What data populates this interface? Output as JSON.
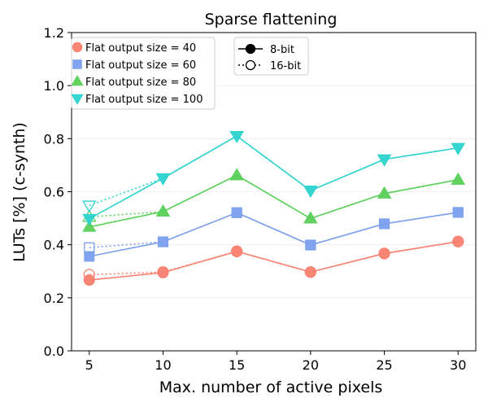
{
  "chart_data": {
    "type": "line",
    "title": "Sparse flattening",
    "xlabel": "Max. number of active pixels",
    "ylabel": "LUTs [%] (c-synth)",
    "x": [
      5,
      10,
      15,
      20,
      25,
      30
    ],
    "x_ticks": [
      "5",
      "10",
      "15",
      "20",
      "25",
      "30"
    ],
    "xlim": [
      3.8,
      31.2
    ],
    "y_ticks": [
      "0.0",
      "0.2",
      "0.4",
      "0.6",
      "0.8",
      "1.0",
      "1.2"
    ],
    "ylim": [
      0.0,
      1.2
    ],
    "grid": "horizontal, light",
    "series": [
      {
        "name": "Flat output size = 40",
        "color": "#FA7F6F",
        "marker": "circle",
        "values_8bit": [
          0.267,
          0.295,
          0.375,
          0.297,
          0.367,
          0.412
        ],
        "values_16bit": [
          0.287,
          0.297,
          0.375,
          0.297,
          0.367,
          0.412
        ]
      },
      {
        "name": "Flat output size = 60",
        "color": "#7CA0EE",
        "marker": "square",
        "values_8bit": [
          0.356,
          0.411,
          0.521,
          0.399,
          0.479,
          0.522
        ],
        "values_16bit": [
          0.389,
          0.411,
          0.521,
          0.399,
          0.479,
          0.522
        ]
      },
      {
        "name": "Flat output size = 80",
        "color": "#5BD05B",
        "marker": "triangle-up",
        "values_8bit": [
          0.467,
          0.525,
          0.662,
          0.499,
          0.593,
          0.645
        ],
        "values_16bit": [
          0.505,
          0.525,
          0.662,
          0.499,
          0.593,
          0.645
        ]
      },
      {
        "name": "Flat output size = 100",
        "color": "#2ED3CF",
        "marker": "triangle-down",
        "values_8bit": [
          0.498,
          0.651,
          0.81,
          0.604,
          0.722,
          0.765
        ],
        "values_16bit": [
          0.548,
          0.651,
          0.81,
          0.604,
          0.722,
          0.765
        ]
      }
    ],
    "linestyle_legend": [
      {
        "name": "8-bit",
        "style": "solid",
        "marker": "filled circle"
      },
      {
        "name": "16-bit",
        "style": "dotted",
        "marker": "hollow circle"
      }
    ],
    "legend_placement": "top-left (series) and top-center (line styles)"
  }
}
